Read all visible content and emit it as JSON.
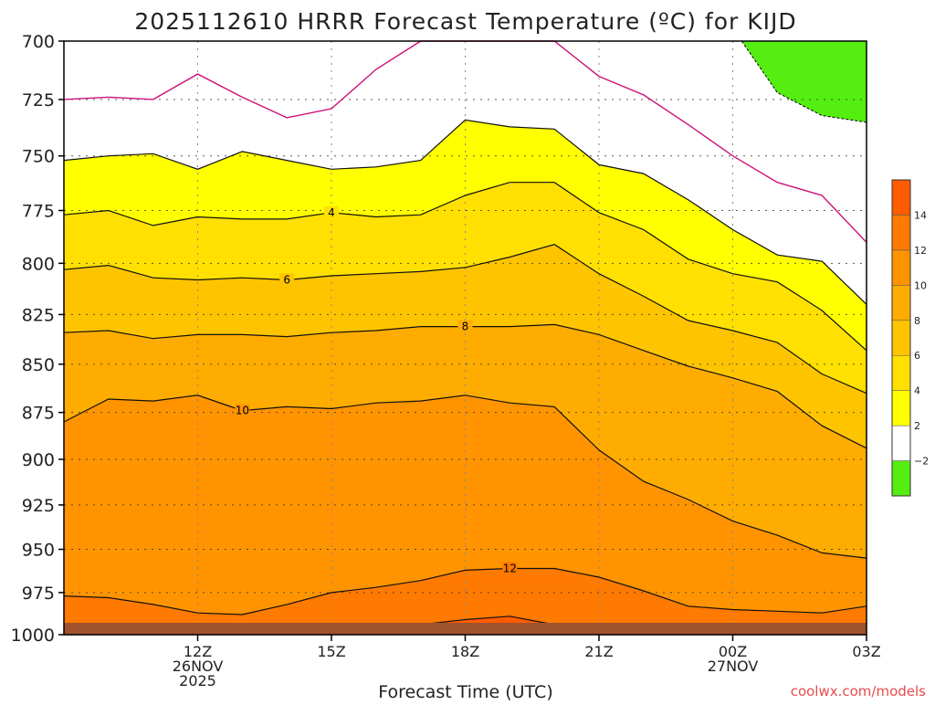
{
  "chart_data": {
    "type": "contour",
    "title": "2025112610 HRRR Forecast Temperature (ºC) for KIJD",
    "xlabel": "Forecast Time (UTC)",
    "ylabel": "",
    "credit": "coolwx.com/models",
    "y_axis": {
      "scale": "pressure-inverted",
      "ylim": [
        1000,
        700
      ],
      "ticks": [
        "700",
        "725",
        "750",
        "775",
        "800",
        "825",
        "850",
        "875",
        "900",
        "925",
        "950",
        "975",
        "1000"
      ],
      "gridlines": "dotted"
    },
    "x_axis": {
      "range_hours_utc": [
        9,
        27
      ],
      "ticks": [
        {
          "hour": 12,
          "lines": [
            "12Z",
            "26NOV",
            "2025"
          ]
        },
        {
          "hour": 15,
          "lines": [
            "15Z"
          ]
        },
        {
          "hour": 18,
          "lines": [
            "18Z"
          ]
        },
        {
          "hour": 21,
          "lines": [
            "21Z"
          ]
        },
        {
          "hour": 24,
          "lines": [
            "00Z",
            "27NOV"
          ]
        },
        {
          "hour": 27,
          "lines": [
            "03Z"
          ]
        }
      ]
    },
    "colorbar": {
      "levels": [
        -2,
        2,
        4,
        6,
        8,
        10,
        12,
        14
      ],
      "tick_labels": [
        "−2",
        "2",
        "4",
        "6",
        "8",
        "10",
        "12",
        "14"
      ],
      "bands": [
        {
          "range": "< -2",
          "color": "#55ee11"
        },
        {
          "range": "-2 to 2",
          "color": "#ffffff"
        },
        {
          "range": "2 to 4",
          "color": "#ffff00"
        },
        {
          "range": "4 to 6",
          "color": "#ffe000"
        },
        {
          "range": "6 to 8",
          "color": "#ffc400"
        },
        {
          "range": "8 to 10",
          "color": "#ffac00"
        },
        {
          "range": "10 to 12",
          "color": "#ff9400"
        },
        {
          "range": "12 to 14",
          "color": "#ff7a00"
        },
        {
          "range": "> 14",
          "color": "#ff5c00"
        }
      ]
    },
    "contour_labels": [
      "4",
      "6",
      "8",
      "10",
      "12"
    ],
    "x_samples_hours": [
      9,
      10,
      11,
      12,
      13,
      14,
      15,
      16,
      17,
      18,
      19,
      20,
      21,
      22,
      23,
      24,
      25,
      26,
      27
    ],
    "isotherms_pressure_hpa": [
      {
        "level": 2,
        "pressure": [
          752,
          750,
          749,
          756,
          748,
          752,
          756,
          755,
          752,
          734,
          737,
          738,
          754,
          758,
          770,
          784,
          796,
          799,
          820
        ]
      },
      {
        "level": 4,
        "pressure": [
          777,
          775,
          782,
          778,
          779,
          779,
          776,
          778,
          777,
          768,
          762,
          762,
          776,
          784,
          798,
          805,
          809,
          823,
          843
        ]
      },
      {
        "level": 6,
        "pressure": [
          803,
          801,
          807,
          808,
          807,
          808,
          806,
          805,
          804,
          802,
          797,
          791,
          805,
          816,
          828,
          833,
          839,
          855,
          865
        ]
      },
      {
        "level": 8,
        "pressure": [
          834,
          833,
          837,
          835,
          835,
          836,
          834,
          833,
          831,
          831,
          831,
          830,
          835,
          843,
          851,
          857,
          864,
          882,
          894
        ]
      },
      {
        "level": 10,
        "pressure": [
          880,
          868,
          869,
          866,
          874,
          872,
          873,
          870,
          869,
          866,
          870,
          872,
          895,
          912,
          922,
          934,
          942,
          952,
          955
        ]
      },
      {
        "level": 12,
        "pressure": [
          977,
          978,
          982,
          987,
          988,
          982,
          975,
          972,
          968,
          962,
          961,
          961,
          966,
          974,
          983,
          985,
          986,
          987,
          983
        ]
      },
      {
        "level": 14,
        "pressure": [
          1000,
          1000,
          1000,
          1000,
          1000,
          1000,
          1000,
          997,
          994,
          991,
          989,
          994,
          1000,
          1000,
          1000,
          1000,
          1000,
          1000,
          1000
        ]
      }
    ],
    "freezing_region_pressure_hpa": {
      "level": -2,
      "x_hours": [
        24.2,
        25,
        26,
        27
      ],
      "pressure": [
        700,
        722,
        732,
        735
      ]
    }
  }
}
